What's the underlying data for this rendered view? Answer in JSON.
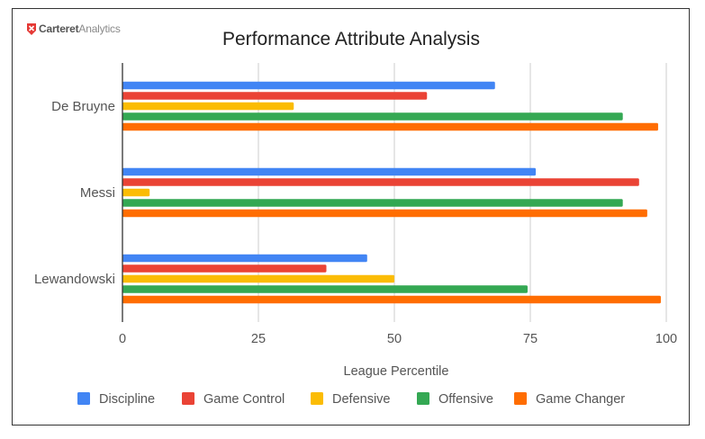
{
  "logo": {
    "brand_bold": "Carteret",
    "brand_light": "Analytics"
  },
  "chart_data": {
    "type": "bar",
    "orientation": "horizontal",
    "title": "Performance Attribute Analysis",
    "xlabel": "League Percentile",
    "ylabel": "",
    "xlim": [
      0,
      100
    ],
    "xticks": [
      0,
      25,
      50,
      75,
      100
    ],
    "grid": true,
    "legend_position": "bottom",
    "categories": [
      "De Bruyne",
      "Messi",
      "Lewandowski"
    ],
    "series": [
      {
        "name": "Discipline",
        "color": "#4285f4",
        "values": [
          68.5,
          76,
          45
        ]
      },
      {
        "name": "Game Control",
        "color": "#ea4335",
        "values": [
          56,
          95,
          37.5
        ]
      },
      {
        "name": "Defensive",
        "color": "#fbbc04",
        "values": [
          31.5,
          5,
          50
        ]
      },
      {
        "name": "Offensive",
        "color": "#34a853",
        "values": [
          92,
          92,
          74.5
        ]
      },
      {
        "name": "Game Changer",
        "color": "#ff6d01",
        "values": [
          98.5,
          96.5,
          99
        ]
      }
    ]
  }
}
